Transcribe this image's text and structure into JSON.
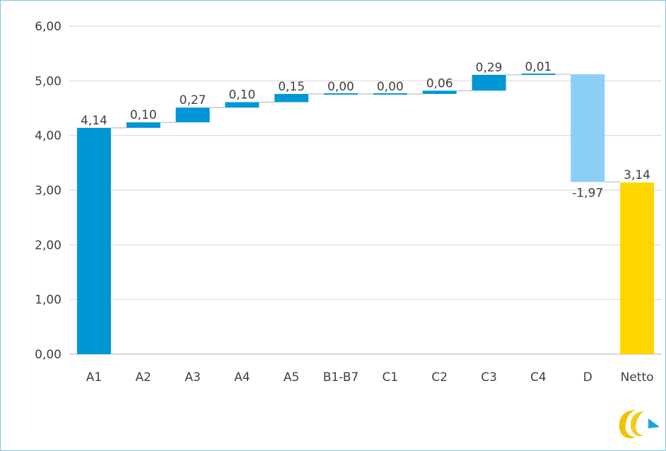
{
  "chart_data": {
    "type": "bar",
    "subtype": "waterfall",
    "categories": [
      "A1",
      "A2",
      "A3",
      "A4",
      "A5",
      "B1-B7",
      "C1",
      "C2",
      "C3",
      "C4",
      "D",
      "Netto"
    ],
    "values": [
      4.14,
      0.1,
      0.27,
      0.1,
      0.15,
      0.0,
      0.0,
      0.06,
      0.29,
      0.01,
      -1.97,
      3.14
    ],
    "data_labels": [
      "4,14",
      "0,10",
      "0,27",
      "0,10",
      "0,15",
      "0,00",
      "0,00",
      "0,06",
      "0,29",
      "0,01",
      "-1,97",
      "3,14"
    ],
    "bar_kinds": [
      "total",
      "increase",
      "increase",
      "increase",
      "increase",
      "increase",
      "increase",
      "increase",
      "increase",
      "increase",
      "decrease",
      "total"
    ],
    "y_tick_labels": [
      "0,00",
      "1,00",
      "2,00",
      "3,00",
      "4,00",
      "5,00",
      "6,00"
    ],
    "ylim": [
      0,
      6
    ],
    "grid": true,
    "title": "",
    "xlabel": "",
    "ylabel": "",
    "colors": {
      "increase": "#0096d6",
      "total_first": "#0096d6",
      "decrease": "#8ccff5",
      "total_last": "#ffd700",
      "logo_yellow": "#f2c200",
      "logo_blue": "#1aa3e0"
    }
  },
  "logo": {
    "icon": "company-logo-icon"
  }
}
